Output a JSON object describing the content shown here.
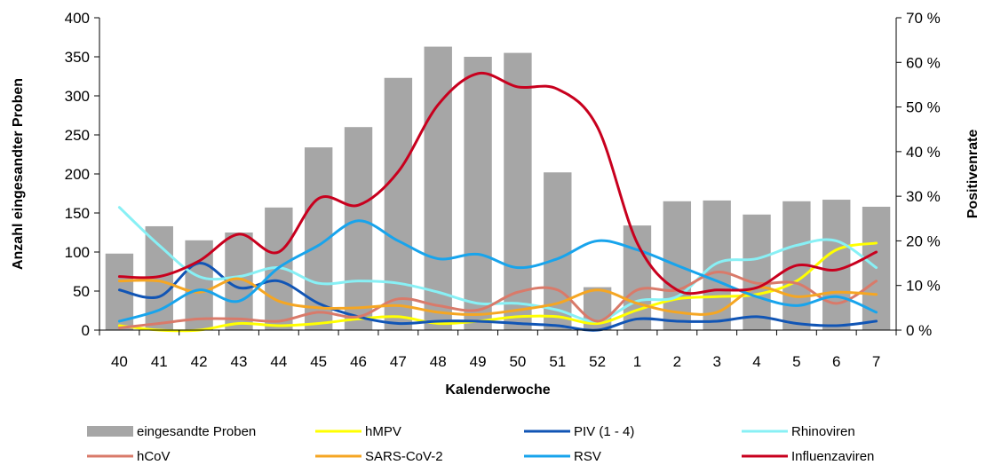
{
  "chart_data": {
    "type": "bar",
    "categories": [
      "40",
      "41",
      "42",
      "43",
      "44",
      "45",
      "46",
      "47",
      "48",
      "49",
      "50",
      "51",
      "52",
      "1",
      "2",
      "3",
      "4",
      "5",
      "6",
      "7"
    ],
    "bar_series": {
      "name": "eingesandte Proben",
      "color": "#a6a6a6",
      "values": [
        98,
        133,
        115,
        125,
        157,
        234,
        260,
        323,
        363,
        350,
        355,
        202,
        55,
        134,
        165,
        166,
        148,
        165,
        167,
        158
      ]
    },
    "line_series": [
      {
        "name": "hMPV",
        "color": "#ffff00",
        "values": [
          1.0,
          0.0,
          0.0,
          1.5,
          1.0,
          1.5,
          2.5,
          3.0,
          1.5,
          2.0,
          3.0,
          3.0,
          1.5,
          4.5,
          7.0,
          7.5,
          8.0,
          11.0,
          18.0,
          19.5
        ]
      },
      {
        "name": "PIV (1 - 4)",
        "color": "#1155b5",
        "values": [
          9.0,
          7.5,
          15.0,
          9.5,
          11.0,
          6.0,
          3.0,
          1.5,
          2.0,
          2.0,
          1.5,
          1.0,
          0.0,
          2.5,
          2.0,
          2.0,
          3.0,
          1.5,
          1.0,
          2.0
        ]
      },
      {
        "name": "Rhinoviren",
        "color": "#88f0f5",
        "values": [
          27.5,
          19.0,
          12.0,
          12.0,
          14.0,
          10.5,
          11.0,
          10.5,
          8.5,
          6.0,
          6.0,
          4.5,
          2.0,
          6.5,
          7.5,
          15.0,
          16.0,
          19.0,
          20.0,
          14.0
        ]
      },
      {
        "name": "hCoV",
        "color": "#d97a6a",
        "values": [
          0.5,
          1.5,
          2.5,
          2.5,
          2.0,
          4.0,
          3.0,
          7.0,
          5.5,
          4.5,
          8.5,
          9.0,
          2.0,
          9.0,
          9.0,
          13.0,
          10.5,
          10.5,
          6.0,
          11.0
        ]
      },
      {
        "name": "SARS-CoV-2",
        "color": "#f5a623",
        "values": [
          11.0,
          11.0,
          8.5,
          11.5,
          6.5,
          5.0,
          5.0,
          5.5,
          4.0,
          3.5,
          4.5,
          6.0,
          9.0,
          6.0,
          4.0,
          4.0,
          9.5,
          7.5,
          8.5,
          8.0
        ]
      },
      {
        "name": "RSV",
        "color": "#18a4ec",
        "values": [
          2.0,
          4.5,
          9.0,
          6.5,
          14.0,
          19.0,
          24.5,
          20.0,
          16.0,
          17.0,
          14.0,
          16.0,
          20.0,
          18.0,
          14.5,
          11.0,
          7.5,
          5.5,
          7.5,
          4.0
        ]
      },
      {
        "name": "Influenzaviren",
        "color": "#c8001e",
        "values": [
          12.0,
          12.0,
          15.5,
          21.5,
          17.5,
          29.5,
          28.0,
          35.5,
          50.5,
          57.5,
          54.5,
          54.0,
          45.5,
          19.5,
          9.0,
          9.0,
          9.5,
          14.5,
          13.5,
          17.5
        ]
      }
    ],
    "xlabel": "Kalenderwoche",
    "ylabel": "Anzahl eingesandter Proben",
    "ylabel_right": "Positivenrate",
    "ylim": [
      0,
      400
    ],
    "y_ticks": [
      0,
      50,
      100,
      150,
      200,
      250,
      300,
      350,
      400
    ],
    "ylim_right": [
      0,
      70
    ],
    "y_ticks_right": [
      "0 %",
      "10 %",
      "20 %",
      "30 %",
      "40 %",
      "50 %",
      "60 %",
      "70 %"
    ],
    "grid": false,
    "legend_position": "bottom",
    "legend_order": [
      "eingesandte Proben",
      "hMPV",
      "PIV (1 - 4)",
      "Rhinoviren",
      "hCoV",
      "SARS-CoV-2",
      "RSV",
      "Influenzaviren"
    ]
  }
}
